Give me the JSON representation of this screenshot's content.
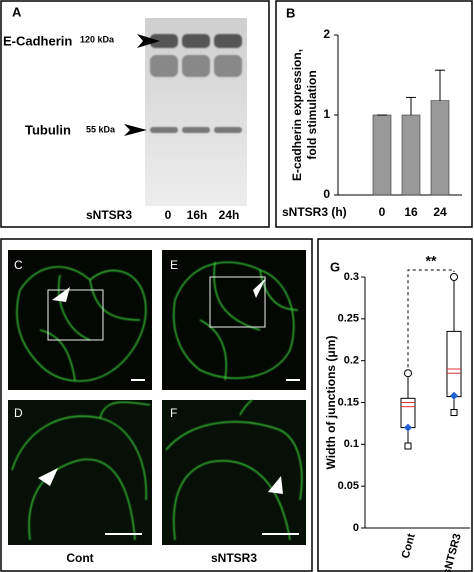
{
  "panel_a": {
    "label": "A",
    "band_1": "E-Cadherin",
    "size_1": "120 kDa",
    "band_2": "Tubulin",
    "size_2": "55 kDa",
    "treatment": "sNTSR3",
    "lanes": [
      "0",
      "16h",
      "24h"
    ]
  },
  "panel_images": {
    "labels": [
      "C",
      "D",
      "E",
      "F"
    ],
    "conditions": [
      "Cont",
      "sNTSR3"
    ]
  },
  "chart_data": [
    {
      "type": "bar",
      "label": "B",
      "y_label": [
        "E-cadherin expression,",
        "fold stimulation"
      ],
      "x_label": "sNTSR3 (h)",
      "categories": [
        "0",
        "16",
        "24"
      ],
      "values": [
        1,
        1,
        1.18
      ],
      "errors": [
        0,
        0.22,
        0.38
      ],
      "color": "#999999",
      "ylim": [
        0,
        2
      ],
      "yticks": [
        0,
        1,
        2
      ]
    },
    {
      "type": "box",
      "label": "G",
      "y_label": "Width of junctions (μm)",
      "categories": [
        "Cont",
        "sNTSR3"
      ],
      "significance": "**",
      "boxes": [
        {
          "min": 0.098,
          "q1": 0.12,
          "median": 0.145,
          "mean": 0.15,
          "q3": 0.155,
          "max": 0.185,
          "diamond": 0.12
        },
        {
          "min": 0.138,
          "q1": 0.157,
          "median": 0.185,
          "mean": 0.19,
          "q3": 0.235,
          "max": 0.3,
          "diamond": 0.158
        }
      ],
      "mean_color": "#e03030",
      "diamond_color": "#1f5fd0",
      "ylim": [
        0,
        0.3
      ],
      "yticks": [
        0,
        0.05,
        0.1,
        0.15,
        0.2,
        0.25,
        0.3
      ]
    }
  ]
}
